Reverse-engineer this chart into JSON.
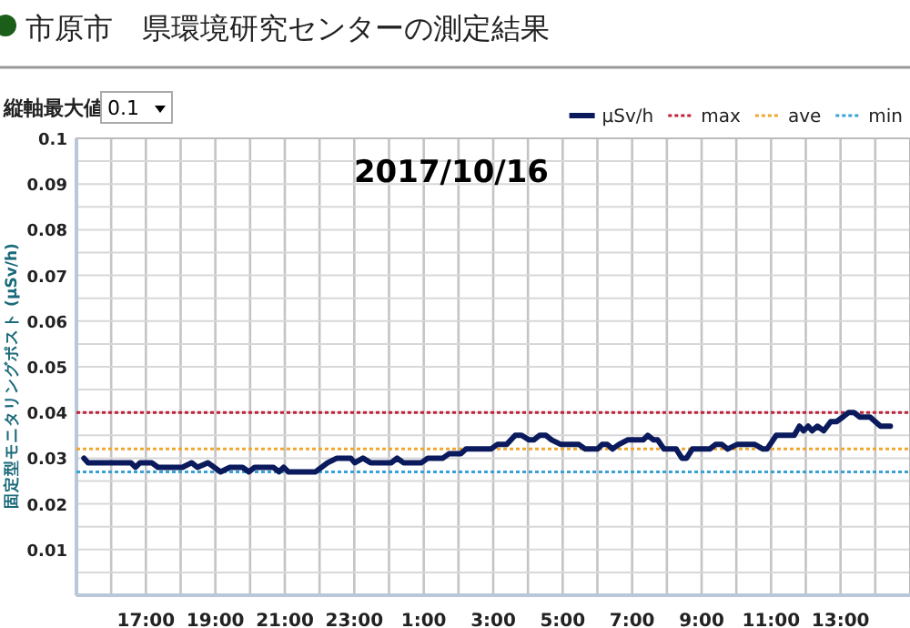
{
  "chart_data": {
    "type": "line",
    "title": "市原市　県環境研究センターの測定結果",
    "subtitle": "2017/10/16",
    "ylabel": "固定型モニタリングポスト (μSv/h)",
    "annotations": [
      "縦軸最大値",
      "0.1"
    ],
    "xlim": [
      "2017-10-15T15:00",
      "2017-10-16T15:00"
    ],
    "ylim": [
      0,
      0.1
    ],
    "xticks": [
      {
        "value": "2017-10-15T16:00",
        "label": null
      },
      {
        "value": "2017-10-15T17:00",
        "label": "17:00"
      },
      {
        "value": "2017-10-15T18:00",
        "label": null
      },
      {
        "value": "2017-10-15T19:00",
        "label": "19:00"
      },
      {
        "value": "2017-10-15T20:00",
        "label": null
      },
      {
        "value": "2017-10-15T21:00",
        "label": "21:00"
      },
      {
        "value": "2017-10-15T22:00",
        "label": null
      },
      {
        "value": "2017-10-15T23:00",
        "label": "23:00"
      },
      {
        "value": "2017-10-16T00:00",
        "label": null
      },
      {
        "value": "2017-10-16T01:00",
        "label": "1:00"
      },
      {
        "value": "2017-10-16T02:00",
        "label": null
      },
      {
        "value": "2017-10-16T03:00",
        "label": "3:00"
      },
      {
        "value": "2017-10-16T04:00",
        "label": null
      },
      {
        "value": "2017-10-16T05:00",
        "label": "5:00"
      },
      {
        "value": "2017-10-16T06:00",
        "label": null
      },
      {
        "value": "2017-10-16T07:00",
        "label": "7:00"
      },
      {
        "value": "2017-10-16T08:00",
        "label": null
      },
      {
        "value": "2017-10-16T09:00",
        "label": "9:00"
      },
      {
        "value": "2017-10-16T10:00",
        "label": null
      },
      {
        "value": "2017-10-16T11:00",
        "label": "11:00"
      },
      {
        "value": "2017-10-16T12:00",
        "label": null
      },
      {
        "value": "2017-10-16T13:00",
        "label": "13:00"
      },
      {
        "value": "2017-10-16T14:00",
        "label": null
      }
    ],
    "yticks": [
      {
        "value": 0.005,
        "label": null
      },
      0.01,
      {
        "value": 0.015,
        "label": null
      },
      0.02,
      {
        "value": 0.025,
        "label": null
      },
      0.03,
      {
        "value": 0.035,
        "label": null
      },
      0.04,
      {
        "value": 0.045,
        "label": null
      },
      0.05,
      {
        "value": 0.055,
        "label": null
      },
      0.06,
      {
        "value": 0.065,
        "label": null
      },
      0.07,
      {
        "value": 0.075,
        "label": null
      },
      0.08,
      {
        "value": 0.085,
        "label": null
      },
      0.09,
      {
        "value": 0.095,
        "label": null
      },
      0.1
    ],
    "grid": true,
    "legend": "top right",
    "marker": "none",
    "line_style": "solid",
    "series": [
      {
        "name": "μSv/h",
        "color": "#0a1a5c",
        "x": [
          "2017-10-15T15:13",
          "2017-10-15T15:20",
          "2017-10-15T16:34",
          "2017-10-15T16:42",
          "2017-10-15T16:50",
          "2017-10-15T17:10",
          "2017-10-15T17:21",
          "2017-10-15T18:03",
          "2017-10-15T18:19",
          "2017-10-15T18:29",
          "2017-10-15T18:47",
          "2017-10-15T19:09",
          "2017-10-15T19:25",
          "2017-10-15T19:47",
          "2017-10-15T19:58",
          "2017-10-15T20:08",
          "2017-10-15T20:40",
          "2017-10-15T20:50",
          "2017-10-15T20:58",
          "2017-10-15T21:06",
          "2017-10-15T21:53",
          "2017-10-15T22:14",
          "2017-10-15T22:30",
          "2017-10-15T22:54",
          "2017-10-15T23:01",
          "2017-10-15T23:15",
          "2017-10-15T23:28",
          "2017-10-16T00:04",
          "2017-10-16T00:14",
          "2017-10-16T00:25",
          "2017-10-16T00:56",
          "2017-10-16T01:07",
          "2017-10-16T01:33",
          "2017-10-16T01:44",
          "2017-10-16T02:04",
          "2017-10-16T02:13",
          "2017-10-16T02:56",
          "2017-10-16T03:07",
          "2017-10-16T03:23",
          "2017-10-16T03:38",
          "2017-10-16T03:49",
          "2017-10-16T04:02",
          "2017-10-16T04:10",
          "2017-10-16T04:20",
          "2017-10-16T04:31",
          "2017-10-16T04:41",
          "2017-10-16T04:57",
          "2017-10-16T05:28",
          "2017-10-16T05:39",
          "2017-10-16T06:00",
          "2017-10-16T06:08",
          "2017-10-16T06:17",
          "2017-10-16T06:26",
          "2017-10-16T06:37",
          "2017-10-16T06:52",
          "2017-10-16T07:19",
          "2017-10-16T07:27",
          "2017-10-16T07:37",
          "2017-10-16T07:44",
          "2017-10-16T07:55",
          "2017-10-16T08:16",
          "2017-10-16T08:26",
          "2017-10-16T08:34",
          "2017-10-16T08:44",
          "2017-10-16T09:14",
          "2017-10-16T09:24",
          "2017-10-16T09:35",
          "2017-10-16T09:45",
          "2017-10-16T10:01",
          "2017-10-16T10:32",
          "2017-10-16T10:46",
          "2017-10-16T10:53",
          "2017-10-16T11:09",
          "2017-10-16T11:40",
          "2017-10-16T11:49",
          "2017-10-16T11:56",
          "2017-10-16T12:04",
          "2017-10-16T12:11",
          "2017-10-16T12:20",
          "2017-10-16T12:31",
          "2017-10-16T12:43",
          "2017-10-16T12:53",
          "2017-10-16T13:04",
          "2017-10-16T13:14",
          "2017-10-16T13:23",
          "2017-10-16T13:33",
          "2017-10-16T13:51",
          "2017-10-16T14:09",
          "2017-10-16T14:26"
        ],
        "values": [
          0.03,
          0.029,
          0.029,
          0.028,
          0.029,
          0.029,
          0.028,
          0.028,
          0.029,
          0.028,
          0.029,
          0.027,
          0.028,
          0.028,
          0.027,
          0.028,
          0.028,
          0.027,
          0.028,
          0.027,
          0.027,
          0.029,
          0.03,
          0.03,
          0.029,
          0.03,
          0.029,
          0.029,
          0.03,
          0.029,
          0.029,
          0.03,
          0.03,
          0.031,
          0.031,
          0.032,
          0.032,
          0.033,
          0.033,
          0.035,
          0.035,
          0.034,
          0.034,
          0.035,
          0.035,
          0.034,
          0.033,
          0.033,
          0.032,
          0.032,
          0.033,
          0.033,
          0.032,
          0.033,
          0.034,
          0.034,
          0.035,
          0.034,
          0.034,
          0.032,
          0.032,
          0.03,
          0.03,
          0.032,
          0.032,
          0.033,
          0.033,
          0.032,
          0.033,
          0.033,
          0.032,
          0.032,
          0.035,
          0.035,
          0.037,
          0.036,
          0.037,
          0.036,
          0.037,
          0.036,
          0.038,
          0.038,
          0.039,
          0.04,
          0.04,
          0.039,
          0.039,
          0.037,
          0.037
        ]
      }
    ],
    "ref_lines": [
      {
        "axis": "y",
        "value": 0.04,
        "label": "max",
        "color": "#c0223a",
        "line_style": "dotted"
      },
      {
        "axis": "y",
        "value": 0.032,
        "label": "ave",
        "color": "#f0a830",
        "line_style": "dotted"
      },
      {
        "axis": "y",
        "value": 0.027,
        "label": "min",
        "color": "#3aa0d8",
        "line_style": "dotted"
      }
    ]
  }
}
